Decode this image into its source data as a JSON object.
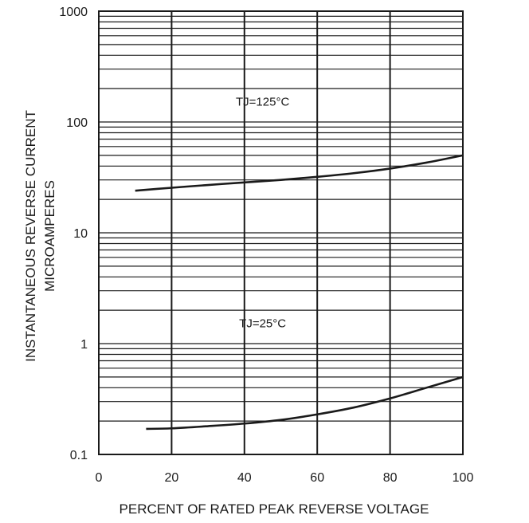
{
  "chart_data": {
    "type": "line",
    "xlabel": "PERCENT OF RATED PEAK REVERSE VOLTAGE",
    "ylabel_lines": [
      "INSTANTANEOUS REVERSE CURRENT",
      "MICROAMPERES"
    ],
    "xlim": [
      0,
      100
    ],
    "ylim": [
      0.1,
      1000
    ],
    "yscale": "log",
    "grid": true,
    "x_ticks": [
      0,
      20,
      40,
      60,
      80,
      100
    ],
    "x_tick_labels": [
      "0",
      "20",
      "40",
      "60",
      "80",
      "100"
    ],
    "y_ticks": [
      0.1,
      1,
      10,
      100,
      1000
    ],
    "y_tick_labels": [
      "0.1",
      "1",
      "10",
      "100",
      "1000"
    ],
    "series": [
      {
        "x": [
          10,
          20,
          30,
          40,
          50,
          60,
          70,
          80,
          90,
          100
        ],
        "y": [
          24,
          25.5,
          27,
          28.5,
          30,
          32,
          34.5,
          38,
          43,
          50
        ]
      },
      {
        "x": [
          13,
          20,
          30,
          40,
          50,
          60,
          70,
          80,
          90,
          100
        ],
        "y": [
          0.17,
          0.172,
          0.18,
          0.19,
          0.205,
          0.23,
          0.265,
          0.32,
          0.4,
          0.5
        ]
      }
    ],
    "annotations": [
      {
        "text": "TJ=125°C",
        "x": 45,
        "y": 140
      },
      {
        "text": "TJ=25°C",
        "x": 45,
        "y": 1.4
      }
    ]
  }
}
